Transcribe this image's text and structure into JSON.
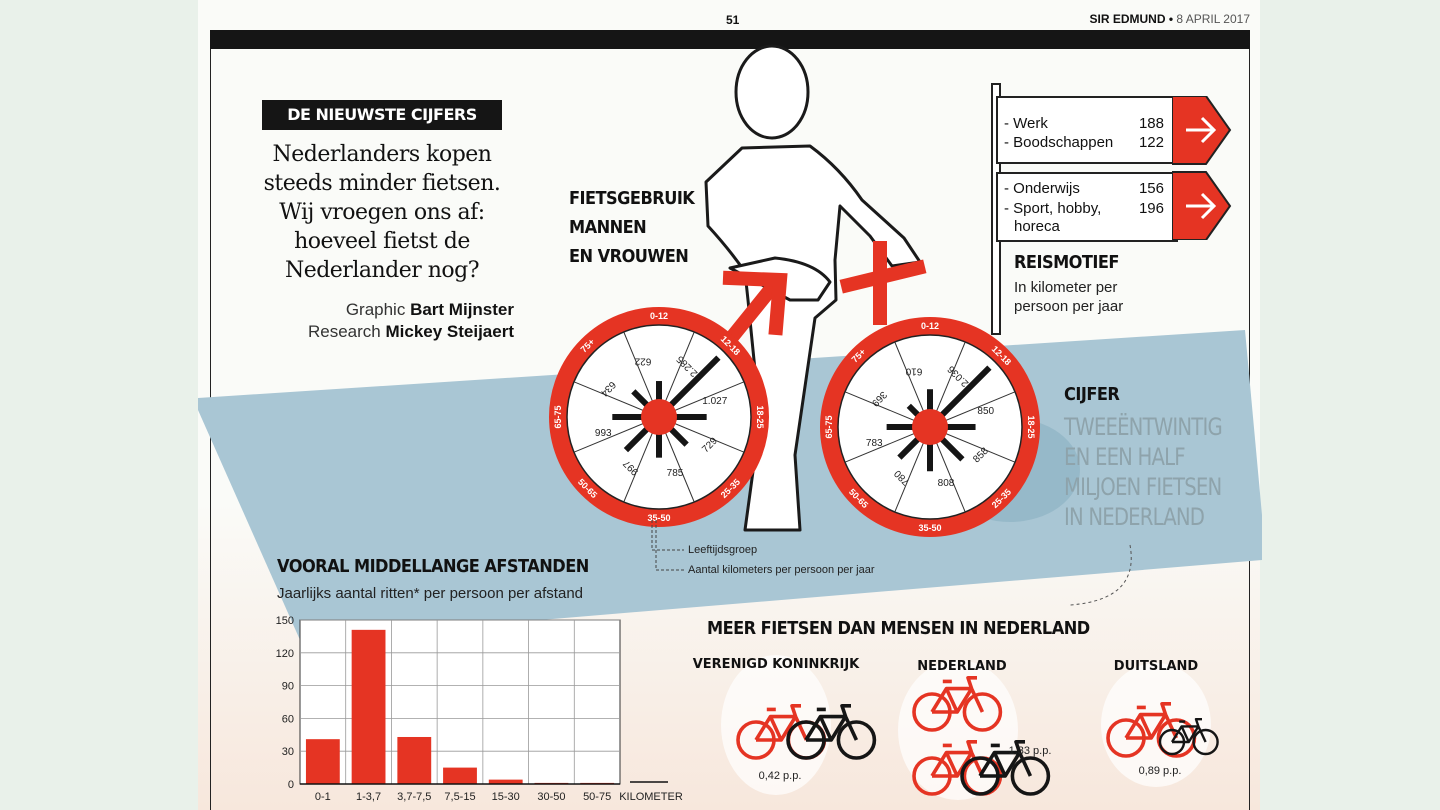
{
  "header": {
    "page_number": "51",
    "publication": "SIR EDMUND",
    "date": "8 APRIL 2017"
  },
  "intro": {
    "kicker": "DE NIEUWSTE CIJFERS",
    "headline_lines": [
      "Nederlanders kopen",
      "steeds minder fietsen.",
      "Wij vroegen ons af:",
      "hoeveel fietst de",
      "Nederlander nog?"
    ],
    "credits": [
      {
        "role": "Graphic",
        "name": "Bart Mijnster"
      },
      {
        "role": "Research",
        "name": "Mickey Steijaert"
      }
    ]
  },
  "wheels": {
    "title_lines": [
      "FIETSGEBRUIK",
      "MANNEN",
      "EN VROUWEN"
    ],
    "age_groups": [
      "0-12",
      "12-18",
      "18-25",
      "25-35",
      "35-50",
      "50-65",
      "65-75",
      "75+"
    ],
    "men": [
      "622",
      "2.285",
      "1.027",
      "729",
      "785",
      "997",
      "993",
      "634"
    ],
    "women": [
      "610",
      "2.036",
      "850",
      "858",
      "808",
      "780",
      "783",
      "369"
    ],
    "legend_age": "Leeftijdsgroep",
    "legend_km": "Aantal kilometers per persoon per jaar"
  },
  "reismotief": {
    "title": "REISMOTIEF",
    "subtitle_lines": [
      "In kilometer per",
      "persoon per jaar"
    ],
    "sign1": [
      {
        "label": "Werk",
        "value": "188"
      },
      {
        "label": "Boodschappen",
        "value": "122"
      }
    ],
    "sign2": [
      {
        "label": "Onderwijs",
        "value": "156"
      },
      {
        "label": "Sport, hobby,",
        "value": "196"
      }
    ],
    "sign2_continuation": "horeca"
  },
  "cijfer": {
    "title": "CIJFER",
    "text_lines": [
      "TWEEËNTWINTIG",
      "EN EEN HALF",
      "MILJOEN FIETSEN",
      "IN NEDERLAND"
    ]
  },
  "chart_data": {
    "type": "bar",
    "title": "VOORAL MIDDELLANGE AFSTANDEN",
    "subtitle": "Jaarlijks aantal ritten* per persoon per afstand",
    "categories": [
      "0-1",
      "1-3,7",
      "3,7-7,5",
      "7,5-15",
      "15-30",
      "30-50",
      "50-75"
    ],
    "values": [
      41,
      141,
      43,
      15,
      4,
      1,
      1
    ],
    "yticks": [
      "0",
      "30",
      "60",
      "90",
      "120",
      "150"
    ],
    "ylim": [
      0,
      150
    ],
    "xlabel": "KILOMETER",
    "grid": true
  },
  "countries": {
    "title": "MEER FIETSEN DAN MENSEN IN NEDERLAND",
    "items": [
      {
        "name": "VERENIGD KONINKRIJK",
        "value": "0,42 p.p."
      },
      {
        "name": "NEDERLAND",
        "value": "1,33 p.p."
      },
      {
        "name": "DUITSLAND",
        "value": "0,89 p.p."
      }
    ]
  },
  "colors": {
    "red": "#e53423",
    "dark": "#151515",
    "road": "#a9c6d4",
    "cijfer": "#8ea3ab"
  }
}
